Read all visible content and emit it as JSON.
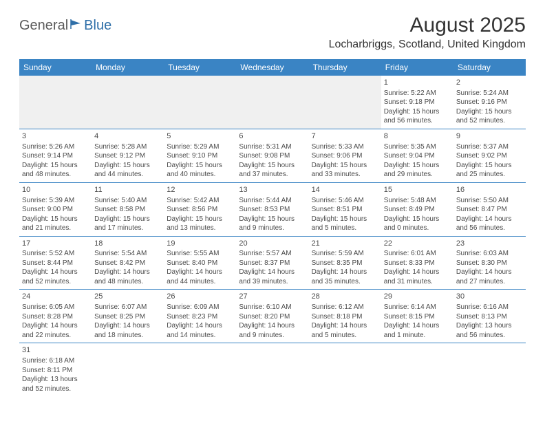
{
  "logo": {
    "part1": "General",
    "part2": "Blue"
  },
  "title": "August 2025",
  "location": "Locharbriggs, Scotland, United Kingdom",
  "header_bg": "#3a84c4",
  "header_fg": "#ffffff",
  "cell_border": "#3a84c4",
  "empty_bg": "#f0f0f0",
  "text_color": "#4a4a4a",
  "dayNames": [
    "Sunday",
    "Monday",
    "Tuesday",
    "Wednesday",
    "Thursday",
    "Friday",
    "Saturday"
  ],
  "weeks": [
    [
      {
        "empty": true
      },
      {
        "empty": true
      },
      {
        "empty": true
      },
      {
        "empty": true
      },
      {
        "empty": true
      },
      {
        "n": "1",
        "sr": "5:22 AM",
        "ss": "9:18 PM",
        "dl": "15 hours and 56 minutes."
      },
      {
        "n": "2",
        "sr": "5:24 AM",
        "ss": "9:16 PM",
        "dl": "15 hours and 52 minutes."
      }
    ],
    [
      {
        "n": "3",
        "sr": "5:26 AM",
        "ss": "9:14 PM",
        "dl": "15 hours and 48 minutes."
      },
      {
        "n": "4",
        "sr": "5:28 AM",
        "ss": "9:12 PM",
        "dl": "15 hours and 44 minutes."
      },
      {
        "n": "5",
        "sr": "5:29 AM",
        "ss": "9:10 PM",
        "dl": "15 hours and 40 minutes."
      },
      {
        "n": "6",
        "sr": "5:31 AM",
        "ss": "9:08 PM",
        "dl": "15 hours and 37 minutes."
      },
      {
        "n": "7",
        "sr": "5:33 AM",
        "ss": "9:06 PM",
        "dl": "15 hours and 33 minutes."
      },
      {
        "n": "8",
        "sr": "5:35 AM",
        "ss": "9:04 PM",
        "dl": "15 hours and 29 minutes."
      },
      {
        "n": "9",
        "sr": "5:37 AM",
        "ss": "9:02 PM",
        "dl": "15 hours and 25 minutes."
      }
    ],
    [
      {
        "n": "10",
        "sr": "5:39 AM",
        "ss": "9:00 PM",
        "dl": "15 hours and 21 minutes."
      },
      {
        "n": "11",
        "sr": "5:40 AM",
        "ss": "8:58 PM",
        "dl": "15 hours and 17 minutes."
      },
      {
        "n": "12",
        "sr": "5:42 AM",
        "ss": "8:56 PM",
        "dl": "15 hours and 13 minutes."
      },
      {
        "n": "13",
        "sr": "5:44 AM",
        "ss": "8:53 PM",
        "dl": "15 hours and 9 minutes."
      },
      {
        "n": "14",
        "sr": "5:46 AM",
        "ss": "8:51 PM",
        "dl": "15 hours and 5 minutes."
      },
      {
        "n": "15",
        "sr": "5:48 AM",
        "ss": "8:49 PM",
        "dl": "15 hours and 0 minutes."
      },
      {
        "n": "16",
        "sr": "5:50 AM",
        "ss": "8:47 PM",
        "dl": "14 hours and 56 minutes."
      }
    ],
    [
      {
        "n": "17",
        "sr": "5:52 AM",
        "ss": "8:44 PM",
        "dl": "14 hours and 52 minutes."
      },
      {
        "n": "18",
        "sr": "5:54 AM",
        "ss": "8:42 PM",
        "dl": "14 hours and 48 minutes."
      },
      {
        "n": "19",
        "sr": "5:55 AM",
        "ss": "8:40 PM",
        "dl": "14 hours and 44 minutes."
      },
      {
        "n": "20",
        "sr": "5:57 AM",
        "ss": "8:37 PM",
        "dl": "14 hours and 39 minutes."
      },
      {
        "n": "21",
        "sr": "5:59 AM",
        "ss": "8:35 PM",
        "dl": "14 hours and 35 minutes."
      },
      {
        "n": "22",
        "sr": "6:01 AM",
        "ss": "8:33 PM",
        "dl": "14 hours and 31 minutes."
      },
      {
        "n": "23",
        "sr": "6:03 AM",
        "ss": "8:30 PM",
        "dl": "14 hours and 27 minutes."
      }
    ],
    [
      {
        "n": "24",
        "sr": "6:05 AM",
        "ss": "8:28 PM",
        "dl": "14 hours and 22 minutes."
      },
      {
        "n": "25",
        "sr": "6:07 AM",
        "ss": "8:25 PM",
        "dl": "14 hours and 18 minutes."
      },
      {
        "n": "26",
        "sr": "6:09 AM",
        "ss": "8:23 PM",
        "dl": "14 hours and 14 minutes."
      },
      {
        "n": "27",
        "sr": "6:10 AM",
        "ss": "8:20 PM",
        "dl": "14 hours and 9 minutes."
      },
      {
        "n": "28",
        "sr": "6:12 AM",
        "ss": "8:18 PM",
        "dl": "14 hours and 5 minutes."
      },
      {
        "n": "29",
        "sr": "6:14 AM",
        "ss": "8:15 PM",
        "dl": "14 hours and 1 minute."
      },
      {
        "n": "30",
        "sr": "6:16 AM",
        "ss": "8:13 PM",
        "dl": "13 hours and 56 minutes."
      }
    ],
    [
      {
        "n": "31",
        "sr": "6:18 AM",
        "ss": "8:11 PM",
        "dl": "13 hours and 52 minutes."
      },
      {
        "empty": true
      },
      {
        "empty": true
      },
      {
        "empty": true
      },
      {
        "empty": true
      },
      {
        "empty": true
      },
      {
        "empty": true
      }
    ]
  ],
  "labels": {
    "sunrise": "Sunrise:",
    "sunset": "Sunset:",
    "daylight": "Daylight:"
  }
}
